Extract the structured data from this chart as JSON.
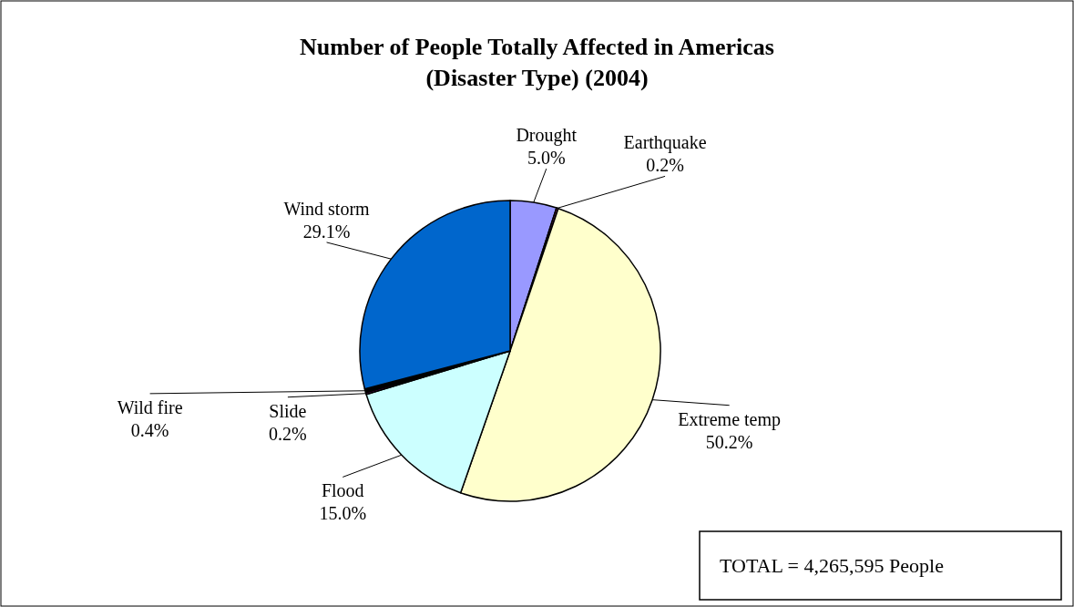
{
  "chart_data": {
    "type": "pie",
    "title": "Number of People Totally Affected in Americas\n(Disaster Type) (2004)",
    "categories": [
      "Drought",
      "Earthquake",
      "Extreme temp",
      "Flood",
      "Slide",
      "Wild fire",
      "Wind storm"
    ],
    "values": [
      5.0,
      0.2,
      50.2,
      15.0,
      0.2,
      0.4,
      29.1
    ],
    "colors": [
      "#9999ff",
      "#993366",
      "#ffffcc",
      "#ccffff",
      "#660066",
      "#000000",
      "#0066cc"
    ],
    "value_labels": [
      "5.0%",
      "0.2%",
      "50.2%",
      "15.0%",
      "0.2%",
      "0.4%",
      "29.1%"
    ],
    "annotations": [
      "TOTAL =  4,265,595 People"
    ]
  }
}
